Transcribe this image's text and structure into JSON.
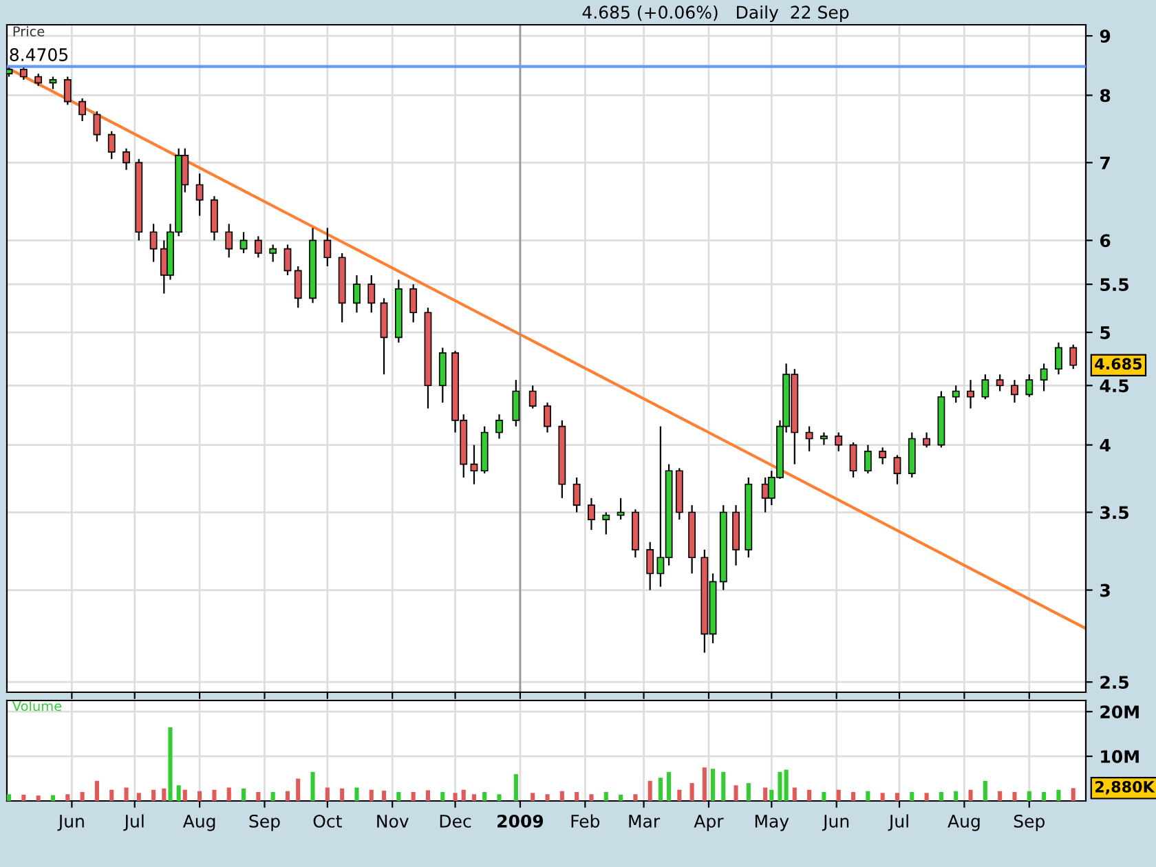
{
  "chart_data": [
    {
      "type": "candlestick",
      "title": "4.685 (+0.06%)   Daily  22 Sep",
      "ylabel": "Price",
      "log": true,
      "grid": true,
      "tick_labels": "y",
      "xlim": [
        "2008-05-01",
        "2009-09-28"
      ],
      "ylim": [
        2.45,
        9.2
      ],
      "yticks": [
        2.5,
        3,
        3.5,
        4,
        4.5,
        5,
        5.5,
        6,
        7,
        8,
        9
      ],
      "xticks": [
        {
          "value": "2008-06-01",
          "label": null
        },
        {
          "value": "2008-07-01",
          "label": null
        },
        {
          "value": "2008-08-01",
          "label": null
        },
        {
          "value": "2008-09-01",
          "label": null
        },
        {
          "value": "2008-10-01",
          "label": null
        },
        {
          "value": "2008-11-01",
          "label": null
        },
        {
          "value": "2008-12-01",
          "label": null
        },
        {
          "value": "2009-01-01",
          "label": null
        },
        {
          "value": "2009-02-01",
          "label": null
        },
        {
          "value": "2009-03-01",
          "label": null
        },
        {
          "value": "2009-04-01",
          "label": null
        },
        {
          "value": "2009-05-01",
          "label": null
        },
        {
          "value": "2009-06-01",
          "label": null
        },
        {
          "value": "2009-07-01",
          "label": null
        },
        {
          "value": "2009-08-01",
          "label": null
        },
        {
          "value": "2009-09-01",
          "label": null
        }
      ],
      "x": [
        "2008-05-02",
        "2008-05-09",
        "2008-05-16",
        "2008-05-23",
        "2008-05-30",
        "2008-06-06",
        "2008-06-13",
        "2008-06-20",
        "2008-06-27",
        "2008-07-03",
        "2008-07-10",
        "2008-07-15",
        "2008-07-18",
        "2008-07-22",
        "2008-07-25",
        "2008-08-01",
        "2008-08-08",
        "2008-08-15",
        "2008-08-22",
        "2008-08-29",
        "2008-09-05",
        "2008-09-12",
        "2008-09-17",
        "2008-09-24",
        "2008-10-01",
        "2008-10-08",
        "2008-10-15",
        "2008-10-22",
        "2008-10-28",
        "2008-11-04",
        "2008-11-11",
        "2008-11-18",
        "2008-11-25",
        "2008-12-01",
        "2008-12-05",
        "2008-12-10",
        "2008-12-15",
        "2008-12-22",
        "2008-12-30",
        "2009-01-07",
        "2009-01-14",
        "2009-01-21",
        "2009-01-28",
        "2009-02-04",
        "2009-02-11",
        "2009-02-18",
        "2009-02-25",
        "2009-03-04",
        "2009-03-09",
        "2009-03-13",
        "2009-03-18",
        "2009-03-24",
        "2009-03-30",
        "2009-04-03",
        "2009-04-08",
        "2009-04-14",
        "2009-04-20",
        "2009-04-28",
        "2009-05-01",
        "2009-05-05",
        "2009-05-08",
        "2009-05-12",
        "2009-05-19",
        "2009-05-26",
        "2009-06-02",
        "2009-06-09",
        "2009-06-16",
        "2009-06-23",
        "2009-06-30",
        "2009-07-07",
        "2009-07-14",
        "2009-07-21",
        "2009-07-28",
        "2009-08-04",
        "2009-08-11",
        "2009-08-18",
        "2009-08-25",
        "2009-09-01",
        "2009-09-08",
        "2009-09-15",
        "2009-09-22"
      ],
      "ohlc": [
        [
          8.35,
          8.45,
          8.3,
          8.42
        ],
        [
          8.42,
          8.45,
          8.25,
          8.3
        ],
        [
          8.3,
          8.35,
          8.15,
          8.2
        ],
        [
          8.2,
          8.3,
          8.1,
          8.25
        ],
        [
          8.25,
          8.3,
          7.85,
          7.9
        ],
        [
          7.9,
          7.95,
          7.6,
          7.7
        ],
        [
          7.7,
          7.75,
          7.3,
          7.4
        ],
        [
          7.4,
          7.45,
          7.05,
          7.15
        ],
        [
          7.15,
          7.2,
          6.9,
          7.0
        ],
        [
          7.0,
          7.05,
          6.0,
          6.1
        ],
        [
          6.1,
          6.2,
          5.75,
          5.9
        ],
        [
          5.9,
          6.0,
          5.4,
          5.6
        ],
        [
          5.6,
          6.2,
          5.55,
          6.1
        ],
        [
          6.1,
          7.2,
          6.05,
          7.1
        ],
        [
          7.1,
          7.2,
          6.6,
          6.7
        ],
        [
          6.7,
          6.85,
          6.3,
          6.5
        ],
        [
          6.5,
          6.55,
          6.0,
          6.1
        ],
        [
          6.1,
          6.2,
          5.8,
          5.9
        ],
        [
          5.9,
          6.1,
          5.85,
          6.0
        ],
        [
          6.0,
          6.05,
          5.8,
          5.85
        ],
        [
          5.85,
          5.95,
          5.75,
          5.9
        ],
        [
          5.9,
          5.95,
          5.6,
          5.65
        ],
        [
          5.65,
          5.7,
          5.25,
          5.35
        ],
        [
          5.35,
          6.15,
          5.3,
          6.0
        ],
        [
          6.0,
          6.15,
          5.7,
          5.8
        ],
        [
          5.8,
          5.85,
          5.1,
          5.3
        ],
        [
          5.3,
          5.6,
          5.2,
          5.5
        ],
        [
          5.5,
          5.6,
          5.2,
          5.3
        ],
        [
          5.3,
          5.35,
          4.6,
          4.95
        ],
        [
          4.95,
          5.55,
          4.9,
          5.45
        ],
        [
          5.45,
          5.5,
          5.1,
          5.2
        ],
        [
          5.2,
          5.25,
          4.3,
          4.5
        ],
        [
          4.5,
          4.85,
          4.35,
          4.8
        ],
        [
          4.8,
          4.82,
          4.1,
          4.2
        ],
        [
          4.2,
          4.25,
          3.75,
          3.85
        ],
        [
          3.85,
          4.0,
          3.7,
          3.8
        ],
        [
          3.8,
          4.15,
          3.78,
          4.1
        ],
        [
          4.1,
          4.25,
          4.05,
          4.2
        ],
        [
          4.2,
          4.55,
          4.15,
          4.45
        ],
        [
          4.45,
          4.5,
          4.3,
          4.32
        ],
        [
          4.32,
          4.35,
          4.1,
          4.15
        ],
        [
          4.15,
          4.2,
          3.6,
          3.7
        ],
        [
          3.7,
          3.75,
          3.5,
          3.55
        ],
        [
          3.55,
          3.6,
          3.38,
          3.45
        ],
        [
          3.45,
          3.5,
          3.35,
          3.48
        ],
        [
          3.48,
          3.6,
          3.45,
          3.5
        ],
        [
          3.5,
          3.52,
          3.2,
          3.25
        ],
        [
          3.25,
          3.3,
          3.0,
          3.1
        ],
        [
          3.1,
          4.15,
          3.02,
          3.2
        ],
        [
          3.2,
          3.85,
          3.15,
          3.8
        ],
        [
          3.8,
          3.82,
          3.45,
          3.5
        ],
        [
          3.5,
          3.55,
          3.1,
          3.2
        ],
        [
          3.2,
          3.25,
          2.65,
          2.75
        ],
        [
          2.75,
          3.1,
          2.7,
          3.05
        ],
        [
          3.05,
          3.55,
          3.0,
          3.5
        ],
        [
          3.5,
          3.55,
          3.15,
          3.25
        ],
        [
          3.25,
          3.75,
          3.2,
          3.7
        ],
        [
          3.7,
          3.75,
          3.5,
          3.6
        ],
        [
          3.6,
          3.8,
          3.55,
          3.75
        ],
        [
          3.75,
          4.2,
          3.74,
          4.15
        ],
        [
          4.15,
          4.7,
          4.1,
          4.6
        ],
        [
          4.6,
          4.65,
          3.85,
          4.1
        ],
        [
          4.1,
          4.15,
          3.95,
          4.05
        ],
        [
          4.05,
          4.1,
          4.0,
          4.07
        ],
        [
          4.07,
          4.1,
          3.95,
          4.0
        ],
        [
          4.0,
          4.02,
          3.75,
          3.8
        ],
        [
          3.8,
          4.0,
          3.78,
          3.95
        ],
        [
          3.95,
          3.98,
          3.85,
          3.9
        ],
        [
          3.9,
          3.92,
          3.7,
          3.78
        ],
        [
          3.78,
          4.1,
          3.75,
          4.05
        ],
        [
          4.05,
          4.1,
          3.98,
          4.0
        ],
        [
          4.0,
          4.45,
          3.98,
          4.4
        ],
        [
          4.4,
          4.5,
          4.35,
          4.45
        ],
        [
          4.45,
          4.55,
          4.3,
          4.4
        ],
        [
          4.4,
          4.6,
          4.38,
          4.55
        ],
        [
          4.55,
          4.6,
          4.45,
          4.5
        ],
        [
          4.5,
          4.55,
          4.35,
          4.42
        ],
        [
          4.42,
          4.6,
          4.4,
          4.55
        ],
        [
          4.55,
          4.7,
          4.45,
          4.65
        ],
        [
          4.65,
          4.9,
          4.6,
          4.85
        ],
        [
          4.85,
          4.88,
          4.65,
          4.685
        ]
      ],
      "colors": [
        "#33cc33",
        "#e05a5a",
        "#e05a5a",
        "#33cc33",
        "#e05a5a",
        "#e05a5a",
        "#e05a5a",
        "#e05a5a",
        "#e05a5a",
        "#e05a5a",
        "#e05a5a",
        "#e05a5a",
        "#33cc33",
        "#33cc33",
        "#e05a5a",
        "#e05a5a",
        "#e05a5a",
        "#e05a5a",
        "#33cc33",
        "#e05a5a",
        "#33cc33",
        "#e05a5a",
        "#e05a5a",
        "#33cc33",
        "#e05a5a",
        "#e05a5a",
        "#33cc33",
        "#e05a5a",
        "#e05a5a",
        "#33cc33",
        "#e05a5a",
        "#e05a5a",
        "#33cc33",
        "#e05a5a",
        "#e05a5a",
        "#e05a5a",
        "#33cc33",
        "#33cc33",
        "#33cc33",
        "#e05a5a",
        "#e05a5a",
        "#e05a5a",
        "#e05a5a",
        "#e05a5a",
        "#33cc33",
        "#33cc33",
        "#e05a5a",
        "#e05a5a",
        "#33cc33",
        "#33cc33",
        "#e05a5a",
        "#e05a5a",
        "#e05a5a",
        "#33cc33",
        "#33cc33",
        "#e05a5a",
        "#33cc33",
        "#e05a5a",
        "#33cc33",
        "#33cc33",
        "#33cc33",
        "#e05a5a",
        "#e05a5a",
        "#33cc33",
        "#e05a5a",
        "#e05a5a",
        "#33cc33",
        "#e05a5a",
        "#e05a5a",
        "#33cc33",
        "#e05a5a",
        "#33cc33",
        "#33cc33",
        "#e05a5a",
        "#33cc33",
        "#e05a5a",
        "#e05a5a",
        "#33cc33",
        "#33cc33",
        "#33cc33",
        "#e05a5a"
      ],
      "series": [
        {
          "type": "line",
          "x": [
            "2008-05-01",
            "2009-09-28"
          ],
          "values": [
            8.45,
            2.78
          ],
          "color": "#ff8033"
        }
      ],
      "ref_lines": [
        {
          "axis": "y",
          "value": 8.4705,
          "label": "8.4705",
          "color": "#6699ff"
        },
        {
          "axis": "x",
          "value": "2009-01-01",
          "color": "#999999"
        }
      ],
      "annotations": [
        {
          "text": "4.685",
          "x": "2009-09-22",
          "y": 4.685
        }
      ]
    },
    {
      "type": "bar",
      "ylabel": "Volume",
      "grid": true,
      "xlim": [
        "2008-05-01",
        "2009-09-28"
      ],
      "ylim": [
        0,
        22500000
      ],
      "yticks": [
        {
          "value": 10000000,
          "label": "10M"
        },
        {
          "value": 20000000,
          "label": "20M"
        }
      ],
      "xticks": [
        {
          "value": "2008-06-01",
          "label": "Jun"
        },
        {
          "value": "2008-07-01",
          "label": "Jul"
        },
        {
          "value": "2008-08-01",
          "label": "Aug"
        },
        {
          "value": "2008-09-01",
          "label": "Sep"
        },
        {
          "value": "2008-10-01",
          "label": "Oct"
        },
        {
          "value": "2008-11-01",
          "label": "Nov"
        },
        {
          "value": "2008-12-01",
          "label": "Dec"
        },
        {
          "value": "2009-01-01",
          "label": "2009"
        },
        {
          "value": "2009-02-01",
          "label": "Feb"
        },
        {
          "value": "2009-03-01",
          "label": "Mar"
        },
        {
          "value": "2009-04-01",
          "label": "Apr"
        },
        {
          "value": "2009-05-01",
          "label": "May"
        },
        {
          "value": "2009-06-01",
          "label": "Jun"
        },
        {
          "value": "2009-07-01",
          "label": "Jul"
        },
        {
          "value": "2009-08-01",
          "label": "Aug"
        },
        {
          "value": "2009-09-01",
          "label": "Sep"
        }
      ],
      "x": [
        "2008-05-02",
        "2008-05-09",
        "2008-05-16",
        "2008-05-23",
        "2008-05-30",
        "2008-06-06",
        "2008-06-13",
        "2008-06-20",
        "2008-06-27",
        "2008-07-03",
        "2008-07-10",
        "2008-07-15",
        "2008-07-18",
        "2008-07-22",
        "2008-07-25",
        "2008-08-01",
        "2008-08-08",
        "2008-08-15",
        "2008-08-22",
        "2008-08-29",
        "2008-09-05",
        "2008-09-12",
        "2008-09-17",
        "2008-09-24",
        "2008-10-01",
        "2008-10-08",
        "2008-10-15",
        "2008-10-22",
        "2008-10-28",
        "2008-11-04",
        "2008-11-11",
        "2008-11-18",
        "2008-11-25",
        "2008-12-01",
        "2008-12-05",
        "2008-12-10",
        "2008-12-15",
        "2008-12-22",
        "2008-12-30",
        "2009-01-07",
        "2009-01-14",
        "2009-01-21",
        "2009-01-28",
        "2009-02-04",
        "2009-02-11",
        "2009-02-18",
        "2009-02-25",
        "2009-03-04",
        "2009-03-09",
        "2009-03-13",
        "2009-03-18",
        "2009-03-24",
        "2009-03-30",
        "2009-04-03",
        "2009-04-08",
        "2009-04-14",
        "2009-04-20",
        "2009-04-28",
        "2009-05-01",
        "2009-05-05",
        "2009-05-08",
        "2009-05-12",
        "2009-05-19",
        "2009-05-26",
        "2009-06-02",
        "2009-06-09",
        "2009-06-16",
        "2009-06-23",
        "2009-06-30",
        "2009-07-07",
        "2009-07-14",
        "2009-07-21",
        "2009-07-28",
        "2009-08-04",
        "2009-08-11",
        "2009-08-18",
        "2009-08-25",
        "2009-09-01",
        "2009-09-08",
        "2009-09-15",
        "2009-09-22"
      ],
      "values": [
        1500000,
        1400000,
        1200000,
        1300000,
        1500000,
        2000000,
        4500000,
        2500000,
        3000000,
        1800000,
        2500000,
        2800000,
        16500000,
        3500000,
        2500000,
        2200000,
        2500000,
        3000000,
        2800000,
        2000000,
        2000000,
        2200000,
        5000000,
        6500000,
        3000000,
        2800000,
        3000000,
        2500000,
        2300000,
        2000000,
        2000000,
        2400000,
        2000000,
        1800000,
        2500000,
        1500000,
        2000000,
        1500000,
        6000000,
        1800000,
        1500000,
        2200000,
        2000000,
        1500000,
        2000000,
        1400000,
        1500000,
        4500000,
        5200000,
        6500000,
        2500000,
        4000000,
        7500000,
        7200000,
        6500000,
        3500000,
        4000000,
        3000000,
        2500000,
        6500000,
        7000000,
        3000000,
        2500000,
        2000000,
        2500000,
        2000000,
        2200000,
        1800000,
        1800000,
        2000000,
        1800000,
        2000000,
        2200000,
        2500000,
        4500000,
        2200000,
        2000000,
        2200000,
        2000000,
        2500000,
        2880000
      ],
      "colors": [
        "#33cc33",
        "#e05a5a",
        "#e05a5a",
        "#33cc33",
        "#e05a5a",
        "#e05a5a",
        "#e05a5a",
        "#e05a5a",
        "#e05a5a",
        "#e05a5a",
        "#e05a5a",
        "#e05a5a",
        "#33cc33",
        "#33cc33",
        "#e05a5a",
        "#e05a5a",
        "#e05a5a",
        "#e05a5a",
        "#33cc33",
        "#e05a5a",
        "#33cc33",
        "#e05a5a",
        "#e05a5a",
        "#33cc33",
        "#e05a5a",
        "#e05a5a",
        "#33cc33",
        "#e05a5a",
        "#e05a5a",
        "#33cc33",
        "#e05a5a",
        "#e05a5a",
        "#33cc33",
        "#e05a5a",
        "#e05a5a",
        "#e05a5a",
        "#33cc33",
        "#33cc33",
        "#33cc33",
        "#e05a5a",
        "#e05a5a",
        "#e05a5a",
        "#e05a5a",
        "#e05a5a",
        "#33cc33",
        "#33cc33",
        "#e05a5a",
        "#e05a5a",
        "#33cc33",
        "#33cc33",
        "#e05a5a",
        "#e05a5a",
        "#e05a5a",
        "#33cc33",
        "#33cc33",
        "#e05a5a",
        "#33cc33",
        "#e05a5a",
        "#33cc33",
        "#33cc33",
        "#33cc33",
        "#e05a5a",
        "#e05a5a",
        "#33cc33",
        "#e05a5a",
        "#e05a5a",
        "#33cc33",
        "#e05a5a",
        "#e05a5a",
        "#33cc33",
        "#e05a5a",
        "#33cc33",
        "#33cc33",
        "#e05a5a",
        "#33cc33",
        "#e05a5a",
        "#e05a5a",
        "#33cc33",
        "#33cc33",
        "#33cc33",
        "#e05a5a"
      ],
      "annotations": [
        {
          "text": "2,880K",
          "x": "2009-09-22",
          "y": 2880000
        }
      ]
    }
  ]
}
